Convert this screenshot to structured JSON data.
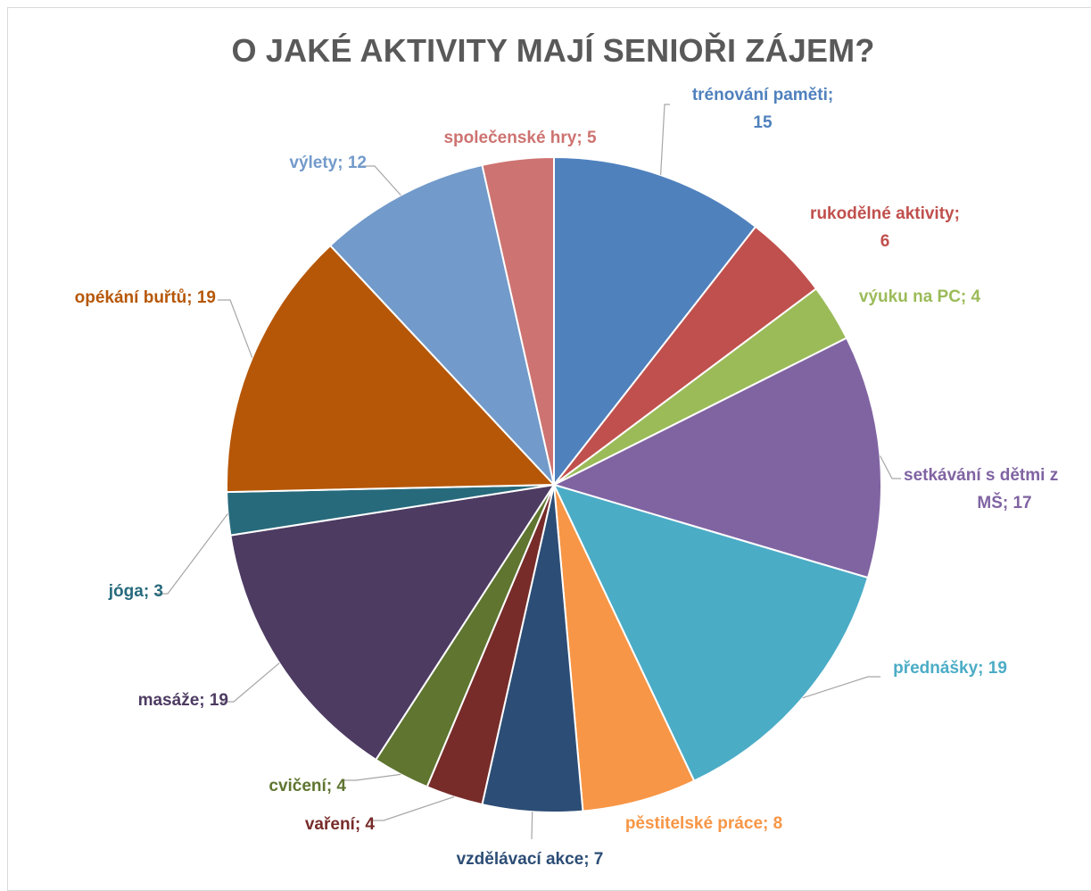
{
  "chart_data": {
    "type": "pie",
    "title": "O JAKÉ AKTIVITY MAJÍ SENIOŘI ZÁJEM?",
    "slices": [
      {
        "label_lines": [
          "trénování paměti;",
          "15"
        ],
        "value": 15,
        "color": "#4f81bd"
      },
      {
        "label_lines": [
          "rukodělné aktivity;",
          "6"
        ],
        "value": 6,
        "color": "#c0504d"
      },
      {
        "label_lines": [
          "výuku na PC; 4"
        ],
        "value": 4,
        "color": "#9bbb59"
      },
      {
        "label_lines": [
          "setkávání s dětmi z",
          "MŠ; 17"
        ],
        "value": 17,
        "color": "#8064a2"
      },
      {
        "label_lines": [
          "přednášky; 19"
        ],
        "value": 19,
        "color": "#4bacc6"
      },
      {
        "label_lines": [
          "pěstitelské práce; 8"
        ],
        "value": 8,
        "color": "#f79646"
      },
      {
        "label_lines": [
          "vzdělávací akce; 7"
        ],
        "value": 7,
        "color": "#2c4d75"
      },
      {
        "label_lines": [
          "vaření; 4"
        ],
        "value": 4,
        "color": "#772c2a"
      },
      {
        "label_lines": [
          "cvičení; 4"
        ],
        "value": 4,
        "color": "#5f7530"
      },
      {
        "label_lines": [
          "masáže; 19"
        ],
        "value": 19,
        "color": "#4d3b62"
      },
      {
        "label_lines": [
          "jóga; 3"
        ],
        "value": 3,
        "color": "#276a7c"
      },
      {
        "label_lines": [
          "opékání buřtů; 19"
        ],
        "value": 19,
        "color": "#b65708"
      },
      {
        "label_lines": [
          "výlety; 12"
        ],
        "value": 12,
        "color": "#729aca"
      },
      {
        "label_lines": [
          "společenské hry; 5"
        ],
        "value": 5,
        "color": "#cd7371"
      }
    ],
    "legend": "none",
    "data_labels": "outside with leader lines"
  }
}
